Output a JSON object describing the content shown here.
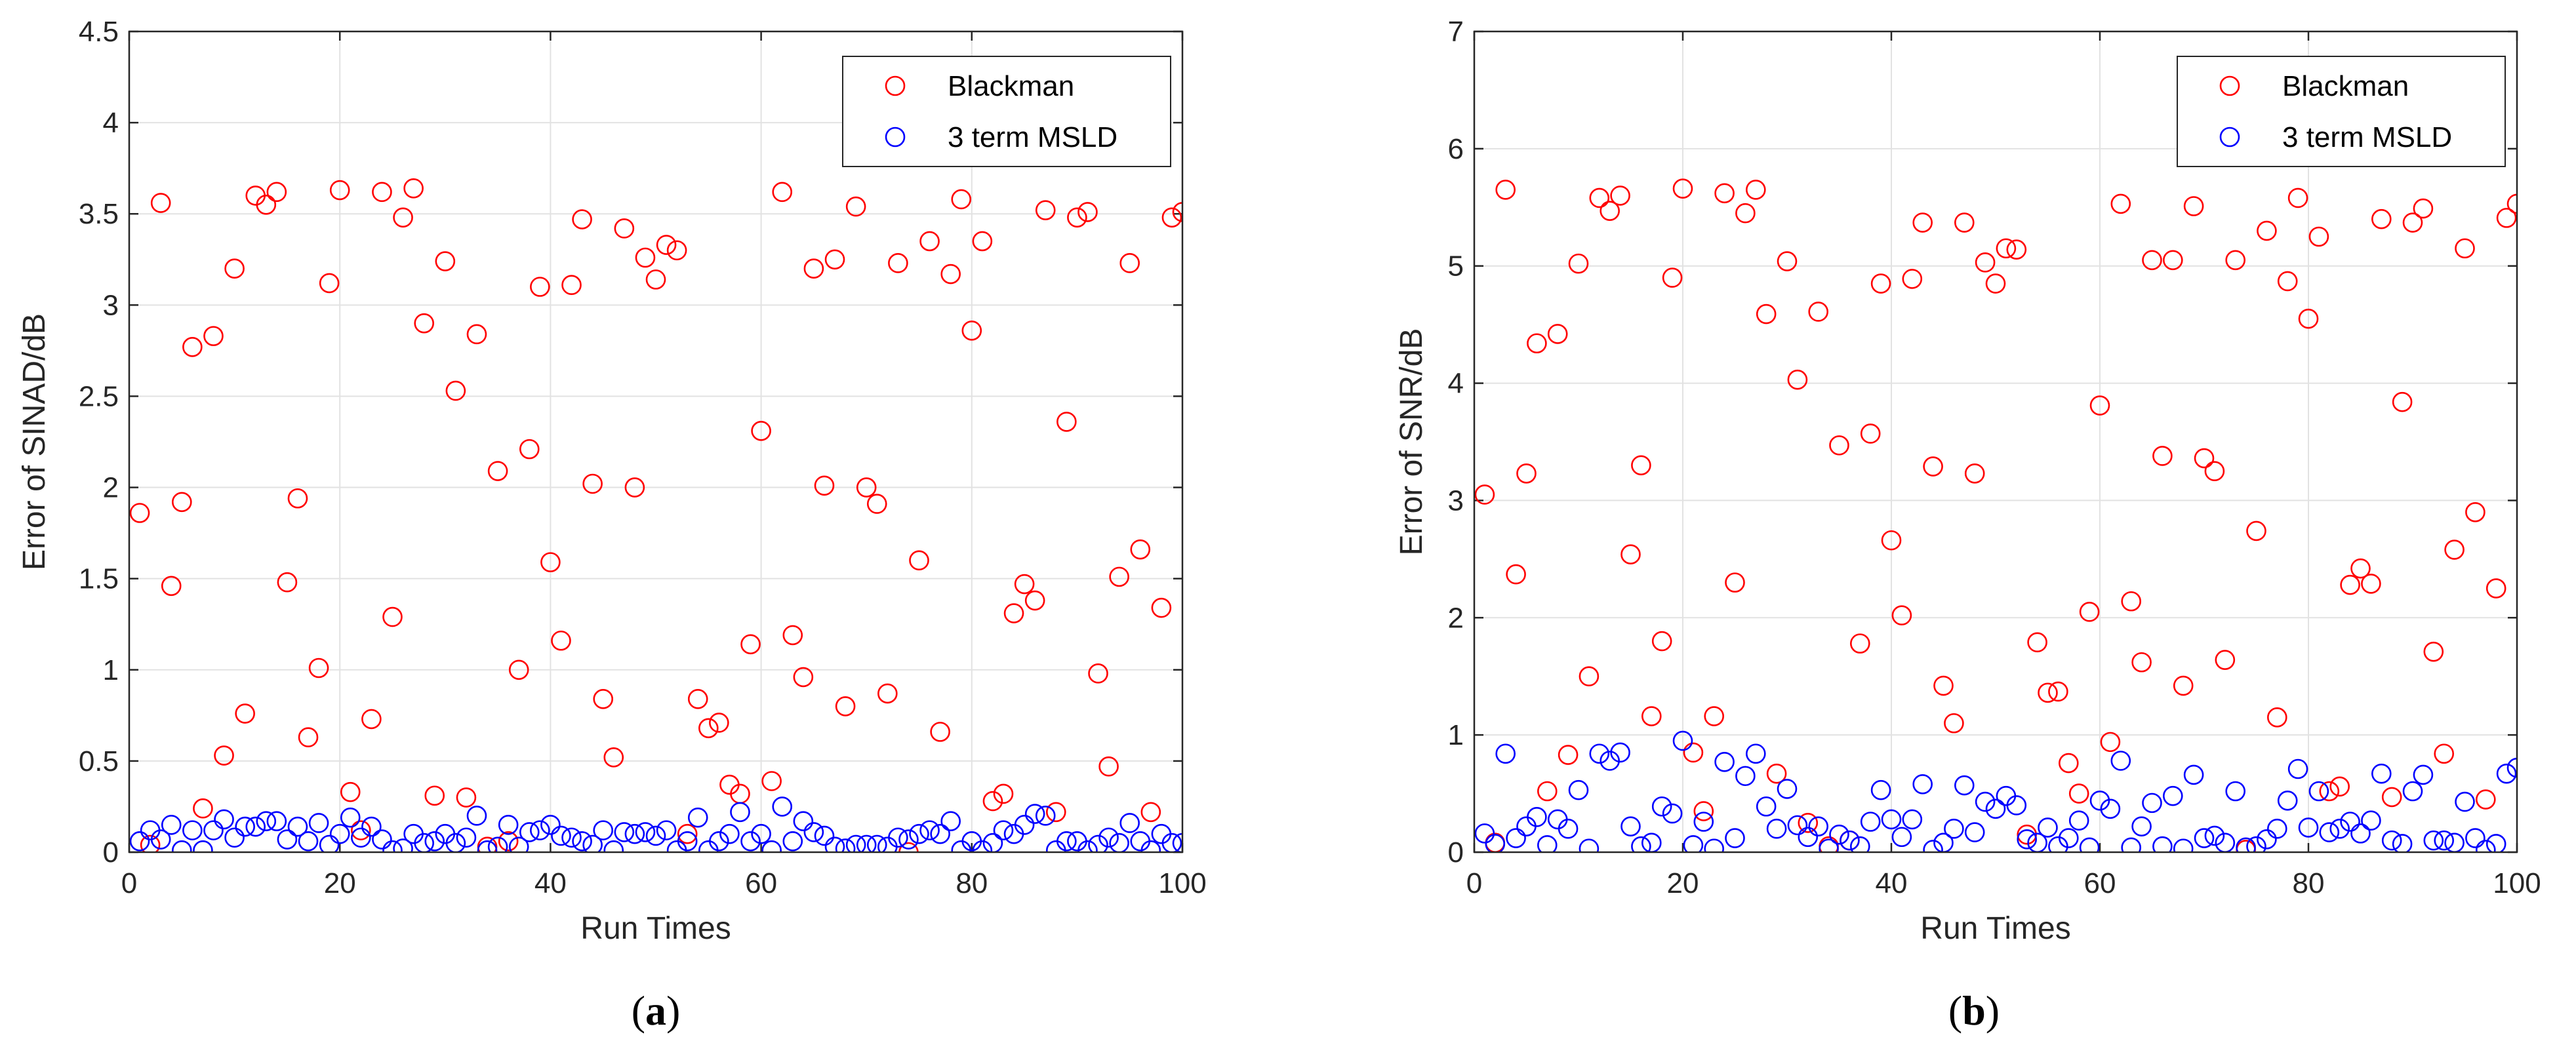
{
  "chart_data": [
    {
      "type": "scatter",
      "panel_label": "a",
      "title": "",
      "xlabel": "Run Times",
      "ylabel": "Error of SINAD/dB",
      "xlim": [
        0,
        100
      ],
      "ylim": [
        0,
        4.5
      ],
      "xticks": [
        "0",
        "20",
        "40",
        "60",
        "80",
        "100"
      ],
      "yticks": [
        "0",
        "0.5",
        "1",
        "1.5",
        "2",
        "2.5",
        "3",
        "3.5",
        "4",
        "4.5"
      ],
      "grid": true,
      "legend_position": "top-right",
      "series": [
        {
          "name": "Blackman",
          "color": "#ff0000",
          "values": [
            1.86,
            0.04,
            3.56,
            1.46,
            1.92,
            2.77,
            0.24,
            2.83,
            0.53,
            3.2,
            0.76,
            3.6,
            3.55,
            3.62,
            1.48,
            1.94,
            0.63,
            1.01,
            3.12,
            3.63,
            0.33,
            0.12,
            0.73,
            3.62,
            1.29,
            3.48,
            3.64,
            2.9,
            0.31,
            3.24,
            2.53,
            0.3,
            2.84,
            0.03,
            2.09,
            0.06,
            1.0,
            2.21,
            3.1,
            1.59,
            1.16,
            3.11,
            3.47,
            2.02,
            0.84,
            0.52,
            3.42,
            2.0,
            3.26,
            3.14,
            3.33,
            3.3,
            0.1,
            0.84,
            0.68,
            0.71,
            0.37,
            0.32,
            1.14,
            2.31,
            0.39,
            3.62,
            1.19,
            0.96,
            3.2,
            2.01,
            3.25,
            0.8,
            3.54,
            2.0,
            1.91,
            0.87,
            3.23,
            0.0,
            1.6,
            3.35,
            0.66,
            3.17,
            3.58,
            2.86,
            3.35,
            0.28,
            0.32,
            1.31,
            1.47,
            1.38,
            3.52,
            0.22,
            2.36,
            3.48,
            3.51,
            0.98,
            0.47,
            1.51,
            3.23,
            1.66,
            0.22,
            1.34,
            3.48,
            3.51
          ]
        },
        {
          "name": "3 term MSLD",
          "color": "#0000ff",
          "values": [
            0.06,
            0.12,
            0.07,
            0.15,
            0.01,
            0.12,
            0.01,
            0.12,
            0.18,
            0.08,
            0.14,
            0.14,
            0.17,
            0.17,
            0.07,
            0.14,
            0.06,
            0.16,
            0.04,
            0.1,
            0.19,
            0.08,
            0.14,
            0.07,
            0.01,
            0.02,
            0.1,
            0.05,
            0.06,
            0.1,
            0.05,
            0.08,
            0.2,
            0.01,
            0.03,
            0.15,
            0.03,
            0.11,
            0.12,
            0.15,
            0.09,
            0.08,
            0.06,
            0.04,
            0.12,
            0.01,
            0.11,
            0.1,
            0.11,
            0.09,
            0.12,
            0.01,
            0.06,
            0.19,
            0.01,
            0.06,
            0.1,
            0.22,
            0.06,
            0.1,
            0.01,
            0.25,
            0.06,
            0.17,
            0.11,
            0.09,
            0.03,
            0.02,
            0.04,
            0.04,
            0.04,
            0.03,
            0.08,
            0.07,
            0.1,
            0.12,
            0.1,
            0.17,
            0.01,
            0.06,
            0.01,
            0.05,
            0.12,
            0.1,
            0.15,
            0.21,
            0.2,
            0.01,
            0.06,
            0.06,
            0.01,
            0.04,
            0.08,
            0.05,
            0.16,
            0.06,
            0.01,
            0.1,
            0.05,
            0.05
          ]
        }
      ]
    },
    {
      "type": "scatter",
      "panel_label": "b",
      "title": "",
      "xlabel": "Run Times",
      "ylabel": "Error of SNR/dB",
      "xlim": [
        0,
        100
      ],
      "ylim": [
        0,
        7
      ],
      "xticks": [
        "0",
        "20",
        "40",
        "60",
        "80",
        "100"
      ],
      "yticks": [
        "0",
        "1",
        "2",
        "3",
        "4",
        "5",
        "6",
        "7"
      ],
      "grid": true,
      "legend_position": "top-right",
      "series": [
        {
          "name": "Blackman",
          "color": "#ff0000",
          "values": [
            3.05,
            0.08,
            5.65,
            2.37,
            3.23,
            4.34,
            0.52,
            4.42,
            0.83,
            5.02,
            1.5,
            5.58,
            5.47,
            5.6,
            2.54,
            3.3,
            1.16,
            1.8,
            4.9,
            5.66,
            0.85,
            0.35,
            1.16,
            5.62,
            2.3,
            5.45,
            5.65,
            4.59,
            0.67,
            5.04,
            4.03,
            0.25,
            4.61,
            0.05,
            3.47,
            0.1,
            1.78,
            3.57,
            4.85,
            2.66,
            2.02,
            4.89,
            5.37,
            3.29,
            1.42,
            1.1,
            5.37,
            3.23,
            5.03,
            4.85,
            5.15,
            5.14,
            0.15,
            1.79,
            1.36,
            1.37,
            0.76,
            0.5,
            2.05,
            3.81,
            0.94,
            5.53,
            2.14,
            1.62,
            5.05,
            3.38,
            5.05,
            1.42,
            5.51,
            3.36,
            3.25,
            1.64,
            5.05,
            0.02,
            2.74,
            5.3,
            1.15,
            4.87,
            5.58,
            4.55,
            5.25,
            0.52,
            0.56,
            2.28,
            2.42,
            2.29,
            5.4,
            0.47,
            3.84,
            5.37,
            5.49,
            1.71,
            0.84,
            2.58,
            5.15,
            2.9,
            0.45,
            2.25,
            5.41,
            5.53
          ]
        },
        {
          "name": "3 term MSLD",
          "color": "#0000ff",
          "values": [
            0.16,
            0.07,
            0.84,
            0.12,
            0.22,
            0.3,
            0.06,
            0.28,
            0.2,
            0.53,
            0.03,
            0.84,
            0.78,
            0.85,
            0.22,
            0.05,
            0.08,
            0.39,
            0.33,
            0.95,
            0.06,
            0.26,
            0.03,
            0.77,
            0.12,
            0.65,
            0.84,
            0.39,
            0.2,
            0.54,
            0.23,
            0.13,
            0.22,
            0.03,
            0.15,
            0.1,
            0.05,
            0.26,
            0.53,
            0.28,
            0.13,
            0.28,
            0.58,
            0.02,
            0.08,
            0.2,
            0.57,
            0.17,
            0.43,
            0.37,
            0.48,
            0.4,
            0.11,
            0.08,
            0.21,
            0.05,
            0.12,
            0.27,
            0.04,
            0.44,
            0.37,
            0.78,
            0.04,
            0.22,
            0.42,
            0.05,
            0.48,
            0.03,
            0.66,
            0.12,
            0.14,
            0.08,
            0.52,
            0.04,
            0.05,
            0.11,
            0.2,
            0.44,
            0.71,
            0.21,
            0.52,
            0.17,
            0.2,
            0.26,
            0.16,
            0.27,
            0.67,
            0.1,
            0.07,
            0.52,
            0.66,
            0.1,
            0.1,
            0.08,
            0.43,
            0.12,
            0.02,
            0.07,
            0.67,
            0.72
          ]
        }
      ]
    }
  ]
}
